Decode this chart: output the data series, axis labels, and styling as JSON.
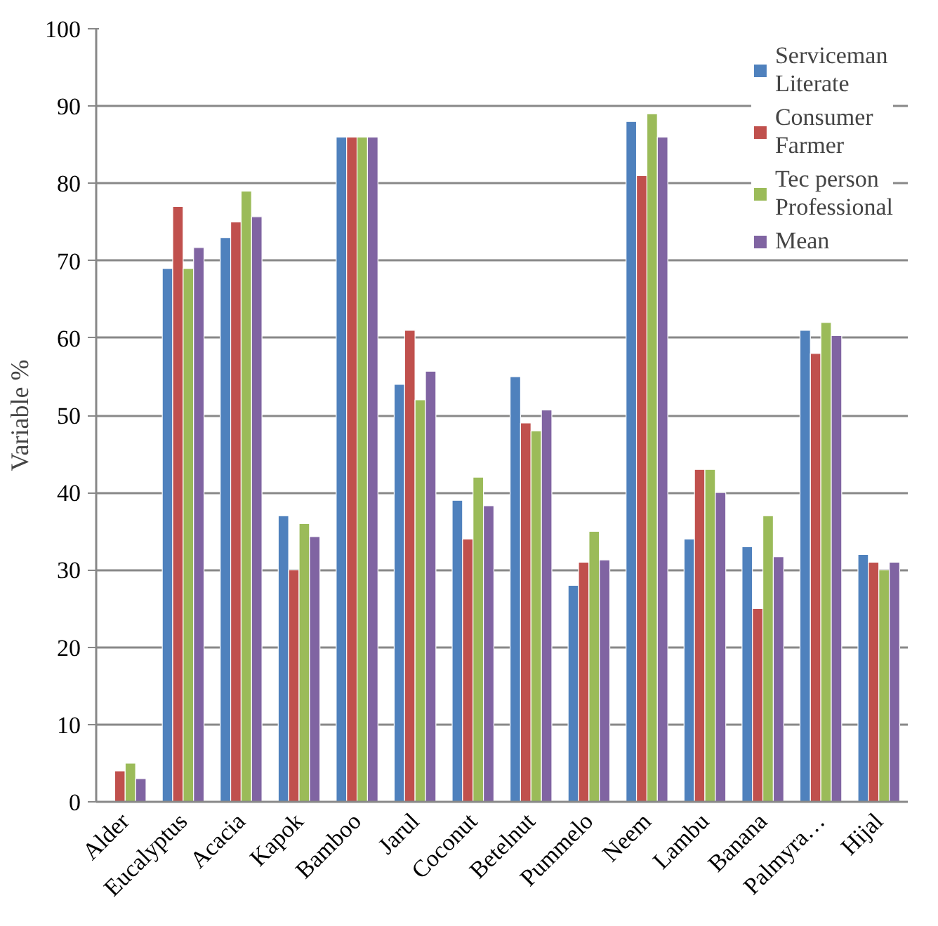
{
  "chart_data": {
    "type": "bar",
    "ylabel": "Variable %",
    "categories": [
      "Alder",
      "Eucalyptus",
      "Acacia",
      "Kapok",
      "Bamboo",
      "Jarul",
      "Coconut",
      "Betelnut",
      "Pummelo",
      "Neem",
      "Lambu",
      "Banana",
      "Palmyra…",
      "Hijal"
    ],
    "series": [
      {
        "name": "Serviceman Literate",
        "color": "#4f81bd",
        "values": [
          null,
          69,
          73,
          37,
          86,
          54,
          39,
          55,
          28,
          88,
          34,
          33,
          61,
          32
        ]
      },
      {
        "name": "Consumer Farmer",
        "color": "#c0504d",
        "values": [
          4,
          77,
          75,
          30,
          86,
          61,
          34,
          49,
          31,
          81,
          43,
          25,
          58,
          31
        ]
      },
      {
        "name": "Tec person Professional",
        "color": "#9bbb59",
        "values": [
          5,
          69,
          79,
          36,
          86,
          52,
          42,
          48,
          35,
          89,
          43,
          37,
          62,
          30
        ]
      },
      {
        "name": "Mean",
        "color": "#8064a2",
        "values": [
          3,
          71.7,
          75.7,
          34.3,
          86,
          55.7,
          38.3,
          50.7,
          31.3,
          86,
          40,
          31.7,
          60.3,
          31
        ]
      }
    ],
    "ylim": [
      0,
      100
    ],
    "yticks": [
      0,
      10,
      20,
      30,
      40,
      50,
      60,
      70,
      80,
      90,
      100
    ],
    "grid": "y",
    "legend": "top right"
  }
}
